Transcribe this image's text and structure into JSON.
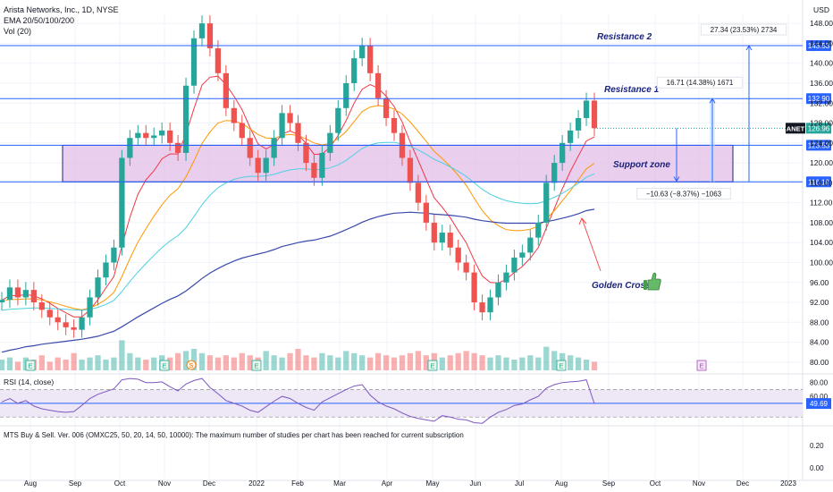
{
  "header": {
    "title": "Arista Networks, Inc., 1D, NYSE",
    "ema_label": "EMA 20/50/100/200",
    "vol_label": "Vol (20)",
    "currency": "USD"
  },
  "colors": {
    "level": "#2962ff",
    "zone_fill": "#e1bee7",
    "zone_border": "#1a237e",
    "up": "#26a69a",
    "down": "#ef5350",
    "ema20": "#f23645",
    "ema50": "#ff9800",
    "ema100": "#4dd0e1",
    "ema200": "#3949ab",
    "rsi": "#7e57c2",
    "rsi_band": "#ede7f6"
  },
  "chart_data": [
    {
      "type": "candlestick",
      "title": "Arista Networks, Inc., 1D, NYSE",
      "ylabel": "USD",
      "ylim": [
        78,
        150
      ],
      "y_ticks": [
        80,
        84,
        88,
        92,
        96,
        100,
        104,
        108,
        112,
        116,
        120,
        124,
        128,
        132,
        136,
        140,
        144,
        148
      ],
      "x_ticks": [
        "Aug",
        "Sep",
        "Oct",
        "Nov",
        "Dec",
        "2022",
        "Feb",
        "Mar",
        "Apr",
        "May",
        "Jun",
        "Jul",
        "Aug",
        "Sep",
        "Oct",
        "Nov",
        "Dec",
        "2023"
      ],
      "ticker": "ANET",
      "last_price": "126.96",
      "series": [
        {
          "name": "ANET",
          "kind": "price",
          "values": [
            92.5,
            95,
            93,
            94.5,
            92,
            90.5,
            89,
            88,
            87,
            86.5,
            89,
            93,
            97,
            100,
            103,
            121,
            125,
            126,
            125,
            125.5,
            126.5,
            124,
            122,
            135.5,
            145,
            148,
            143,
            138,
            131,
            128,
            125,
            121,
            118,
            121,
            125,
            130,
            128,
            124,
            120,
            117,
            122,
            126,
            131,
            136,
            141,
            143.5,
            138,
            133,
            129,
            126,
            121,
            116,
            112,
            108,
            104,
            106,
            103,
            100,
            98,
            92,
            90,
            93,
            96,
            98,
            101,
            102,
            105,
            108,
            116,
            120,
            124,
            126.5,
            129,
            132.5,
            126.96
          ]
        },
        {
          "name": "EMA 20",
          "kind": "ema",
          "values": [
            92.4,
            93.4,
            93.3,
            93.6,
            93.3,
            92.7,
            91.8,
            90.8,
            89.9,
            89.1,
            89.1,
            90.5,
            92.5,
            94.9,
            97.2,
            103.3,
            109.1,
            113.7,
            116.6,
            118.4,
            120.8,
            121.8,
            121.8,
            125.8,
            130.9,
            135.6,
            137.2,
            137.4,
            135.7,
            133.4,
            130.7,
            127.1,
            123.8,
            122.8,
            123.7,
            125.8,
            126.4,
            125.7,
            123.9,
            121.7,
            121.8,
            123.1,
            125.5,
            128.5,
            132.0,
            134.8,
            135.7,
            135.0,
            133.4,
            131.3,
            128.2,
            124.2,
            120.5,
            116.7,
            113.0,
            111.1,
            109.0,
            106.4,
            104.0,
            100.4,
            97.3,
            96.0,
            95.9,
            96.6,
            98.0,
            99.2,
            100.9,
            103.0,
            106.9,
            110.8,
            114.8,
            118.3,
            121.4,
            124.4,
            125.2
          ]
        },
        {
          "name": "EMA 50",
          "kind": "ema",
          "values": [
            92.2,
            92.6,
            92.6,
            92.7,
            92.7,
            92.5,
            92.1,
            91.7,
            91.2,
            90.8,
            90.5,
            90.9,
            91.6,
            92.6,
            94.0,
            97.2,
            100.8,
            104.1,
            106.8,
            109.3,
            111.6,
            113.5,
            114.8,
            117.2,
            120.4,
            123.9,
            126.2,
            128.0,
            128.5,
            128.4,
            127.9,
            126.8,
            125.7,
            125.0,
            124.9,
            125.5,
            125.7,
            125.5,
            124.8,
            124.0,
            123.6,
            123.9,
            124.9,
            126.3,
            128.3,
            130.3,
            131.2,
            131.5,
            131.3,
            130.8,
            129.8,
            128.2,
            126.3,
            124.3,
            122.3,
            120.9,
            119.3,
            117.5,
            115.5,
            112.9,
            110.4,
            108.6,
            107.4,
            106.6,
            106.4,
            106.4,
            106.7,
            107.3,
            108.7,
            110.4,
            112.4,
            114.4,
            116.6,
            118.8,
            119.9
          ]
        },
        {
          "name": "EMA 100",
          "kind": "ema",
          "values": [
            90.4,
            90.6,
            90.7,
            90.8,
            90.9,
            90.9,
            90.8,
            90.7,
            90.6,
            90.5,
            90.4,
            90.6,
            91.0,
            91.6,
            92.4,
            94.2,
            96.2,
            98.1,
            99.8,
            101.4,
            103.0,
            104.3,
            105.4,
            107.0,
            109.2,
            111.6,
            113.5,
            115.0,
            116.0,
            116.7,
            117.1,
            117.3,
            117.3,
            117.4,
            117.7,
            118.2,
            118.6,
            118.8,
            118.8,
            118.6,
            118.7,
            119.0,
            119.6,
            120.5,
            121.7,
            122.9,
            123.6,
            124.0,
            124.1,
            124.1,
            123.8,
            123.3,
            122.6,
            121.7,
            120.7,
            120.0,
            119.2,
            118.3,
            117.3,
            116.0,
            114.7,
            113.7,
            113.0,
            112.4,
            112.1,
            111.9,
            111.8,
            111.9,
            112.4,
            113.1,
            113.9,
            114.9,
            115.9,
            117.1,
            117.8
          ]
        },
        {
          "name": "EMA 200",
          "kind": "ema",
          "values": [
            82.0,
            82.4,
            82.7,
            83.1,
            83.3,
            83.6,
            83.8,
            84.0,
            84.2,
            84.4,
            84.6,
            84.9,
            85.2,
            85.7,
            86.2,
            87.1,
            88.1,
            89.1,
            90.0,
            90.9,
            91.8,
            92.6,
            93.3,
            94.3,
            95.5,
            96.8,
            97.9,
            98.8,
            99.6,
            100.3,
            100.9,
            101.3,
            101.7,
            102.1,
            102.6,
            103.2,
            103.6,
            104.0,
            104.3,
            104.5,
            104.9,
            105.3,
            105.9,
            106.6,
            107.3,
            108.1,
            108.7,
            109.2,
            109.6,
            109.9,
            110.0,
            110.1,
            110.0,
            109.9,
            109.7,
            109.6,
            109.5,
            109.3,
            109.1,
            108.7,
            108.4,
            108.2,
            108.0,
            107.9,
            107.9,
            107.9,
            107.9,
            107.9,
            108.2,
            108.5,
            108.9,
            109.3,
            109.8,
            110.4,
            110.7
          ]
        }
      ],
      "levels": [
        {
          "name": "Resistance 2",
          "price": "143.53",
          "y": 143.53
        },
        {
          "name": "Resistance 1",
          "price": "132.90",
          "y": 132.9
        },
        {
          "name": "",
          "price": "123.53",
          "y": 123.53
        },
        {
          "name": "",
          "price": "116.19",
          "y": 116.19
        }
      ],
      "support_zone": {
        "label": "Support zone",
        "from": 116.19,
        "to": 123.53
      },
      "measurements": [
        {
          "text": "27.34 (23.53%) 2734",
          "from": 116.19,
          "to": 143.53
        },
        {
          "text": "16.71 (14.38%) 1671",
          "from": 116.19,
          "to": 132.9
        },
        {
          "text": "−10.63 (−8.37%) −1063",
          "from": 126.96,
          "to": 116.33
        }
      ],
      "annotation": {
        "text": "Golden Cross",
        "icon": "thumbs-up-icon"
      },
      "earnings_marker_label": "E",
      "dividend_marker_label": "S",
      "volume": [
        5,
        6,
        4,
        6,
        5,
        7,
        4,
        6,
        5,
        8,
        5,
        6,
        7,
        5,
        6,
        14,
        8,
        6,
        5,
        6,
        7,
        6,
        8,
        9,
        10,
        8,
        7,
        6,
        7,
        6,
        8,
        7,
        6,
        9,
        7,
        6,
        8,
        10,
        7,
        6,
        8,
        7,
        6,
        9,
        8,
        7,
        6,
        8,
        7,
        6,
        7,
        8,
        9,
        7,
        8,
        6,
        7,
        8,
        9,
        8,
        7,
        6,
        7,
        6,
        5,
        6,
        7,
        6,
        11,
        9,
        8,
        7,
        6,
        5,
        4
      ]
    },
    {
      "type": "line",
      "title": "RSI (14, close)",
      "ylim": [
        20,
        90
      ],
      "y_ticks": [
        "80.00",
        "60.00"
      ],
      "bands": [
        70,
        30
      ],
      "last_value": "49.69",
      "series": [
        {
          "name": "RSI",
          "values": [
            52,
            57,
            50,
            54,
            46,
            42,
            40,
            38,
            37,
            38,
            47,
            57,
            63,
            67,
            71,
            84,
            86,
            85,
            80,
            80,
            81,
            74,
            68,
            78,
            83,
            86,
            73,
            64,
            54,
            50,
            46,
            40,
            37,
            45,
            53,
            60,
            57,
            50,
            44,
            40,
            52,
            58,
            64,
            70,
            75,
            77,
            62,
            52,
            46,
            42,
            36,
            31,
            28,
            26,
            24,
            32,
            30,
            27,
            26,
            22,
            21,
            30,
            37,
            41,
            47,
            49,
            55,
            60,
            72,
            77,
            80,
            81,
            82,
            84,
            49.69
          ]
        }
      ]
    },
    {
      "type": "line",
      "title": "MTS Buy & Sell. Ver. 006 (OMXC25, 50, 20, 14, 50, 10000): The maximum number of studies per chart has been reached for current subscription",
      "y_ticks": [
        "0.20",
        "0.00"
      ],
      "series": []
    }
  ]
}
